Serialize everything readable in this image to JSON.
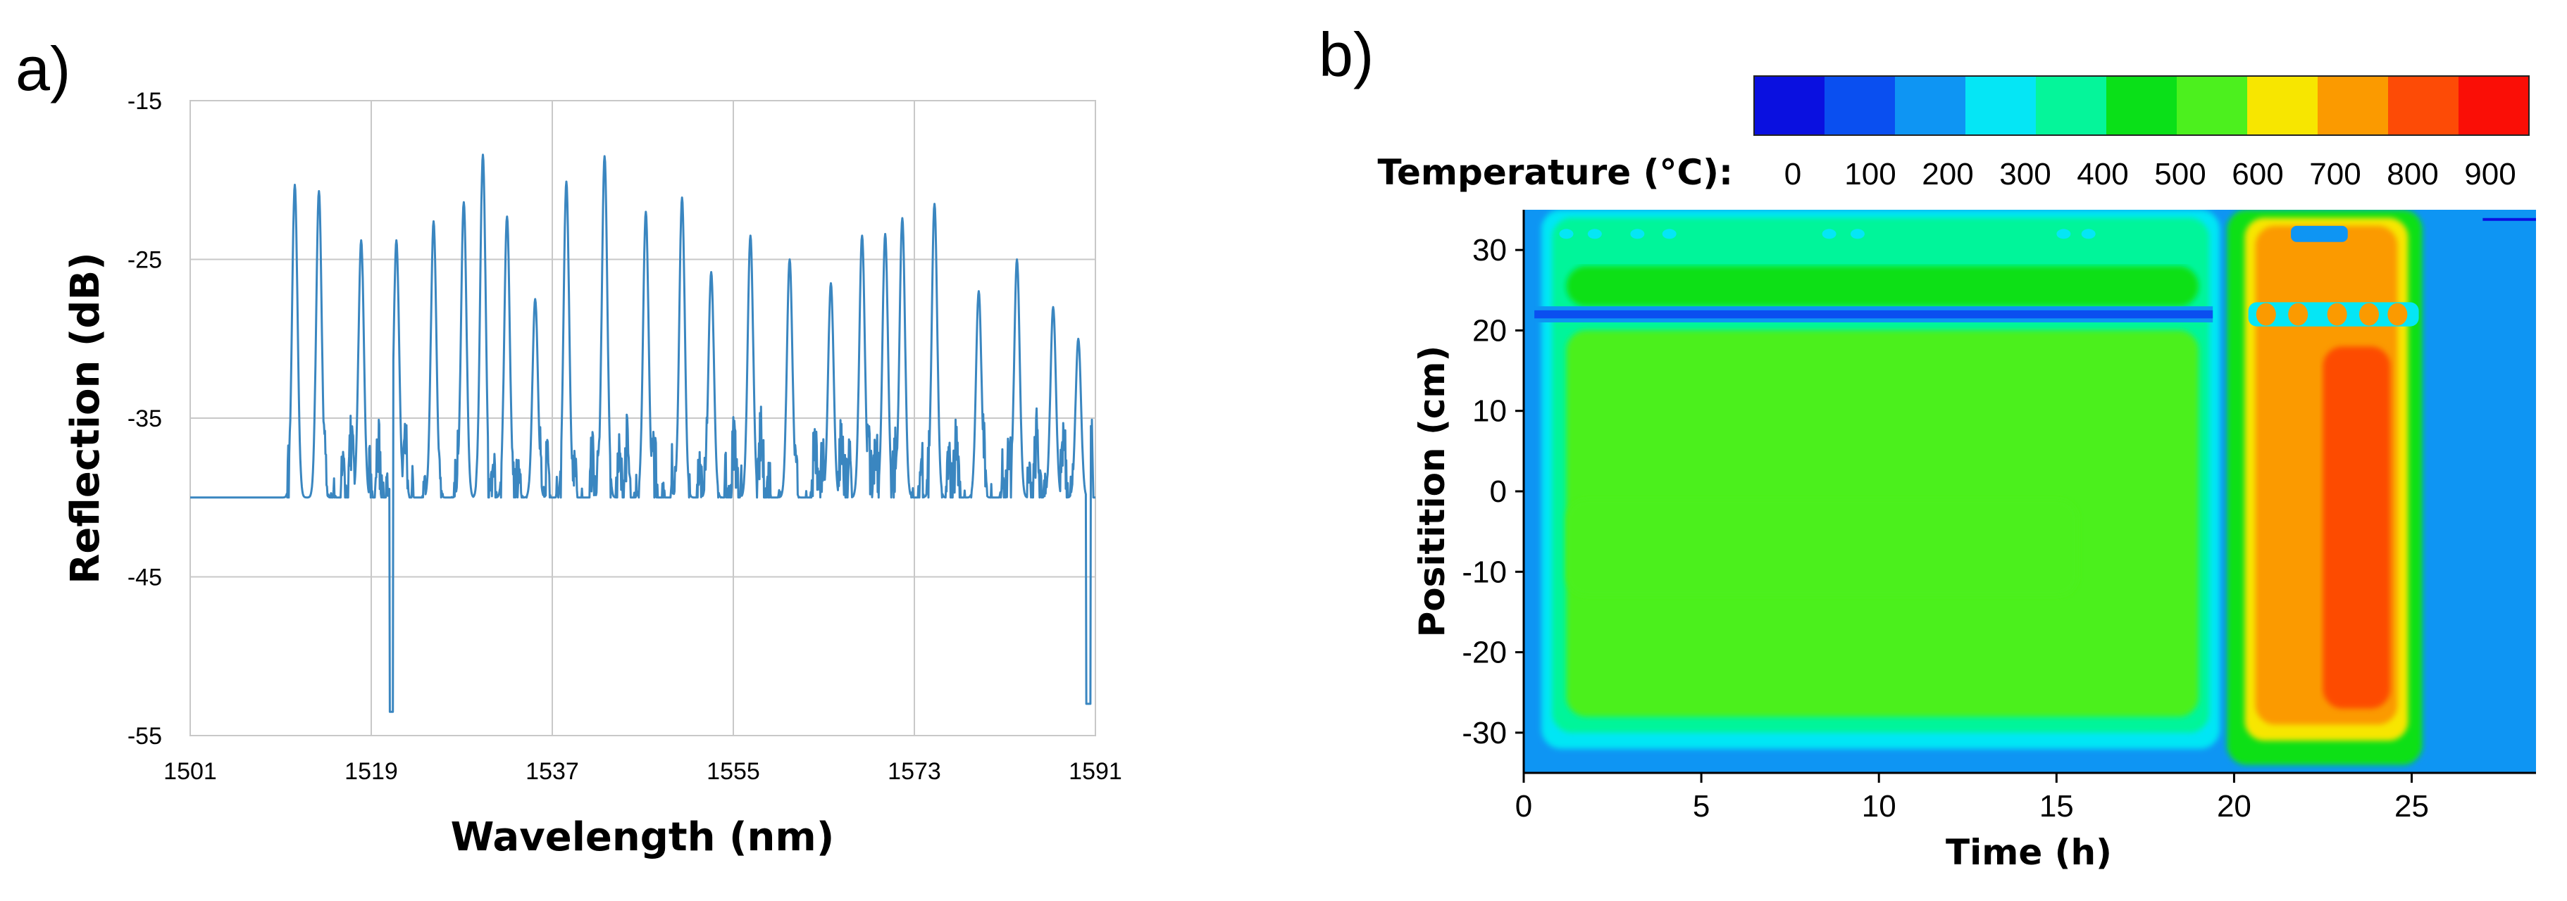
{
  "chart_data": [
    {
      "panel": "a)",
      "type": "line",
      "xlabel": "Wavelength (nm)",
      "ylabel": "Reflection (dB)",
      "xlim": [
        1501,
        1591
      ],
      "ylim": [
        -55,
        -15
      ],
      "xticks": [
        "1501",
        "1519",
        "1537",
        "1555",
        "1573",
        "1591"
      ],
      "yticks": [
        "-15",
        "-25",
        "-35",
        "-45",
        "-55"
      ],
      "grid": true,
      "line_color": "#3a86c0",
      "noise_floor_db": -40,
      "peaks": [
        {
          "x": 1511.4,
          "y": -20.3
        },
        {
          "x": 1513.8,
          "y": -20.7
        },
        {
          "x": 1518.0,
          "y": -23.8
        },
        {
          "x": 1521.5,
          "y": -23.8
        },
        {
          "x": 1525.2,
          "y": -22.6
        },
        {
          "x": 1528.2,
          "y": -21.4
        },
        {
          "x": 1530.1,
          "y": -18.4
        },
        {
          "x": 1532.5,
          "y": -22.3
        },
        {
          "x": 1535.3,
          "y": -27.5
        },
        {
          "x": 1538.4,
          "y": -20.1
        },
        {
          "x": 1542.2,
          "y": -18.5
        },
        {
          "x": 1546.3,
          "y": -22.0
        },
        {
          "x": 1549.9,
          "y": -21.1
        },
        {
          "x": 1552.8,
          "y": -25.8
        },
        {
          "x": 1556.7,
          "y": -23.5
        },
        {
          "x": 1560.6,
          "y": -25.0
        },
        {
          "x": 1564.7,
          "y": -26.5
        },
        {
          "x": 1567.8,
          "y": -23.5
        },
        {
          "x": 1570.1,
          "y": -23.4
        },
        {
          "x": 1571.8,
          "y": -22.4
        },
        {
          "x": 1575.0,
          "y": -21.5
        },
        {
          "x": 1579.4,
          "y": -27.0
        },
        {
          "x": 1583.2,
          "y": -25.0
        },
        {
          "x": 1586.8,
          "y": -28.0
        },
        {
          "x": 1589.3,
          "y": -30.0
        }
      ]
    },
    {
      "panel": "b)",
      "type": "heatmap",
      "xlabel": "Time (h)",
      "ylabel": "Positition (cm)",
      "xlim": [
        0,
        28.5
      ],
      "ylim": [
        -35,
        35
      ],
      "xticks": [
        "0",
        "5",
        "10",
        "15",
        "20",
        "25"
      ],
      "yticks": [
        "30",
        "20",
        "10",
        "0",
        "-10",
        "-20",
        "-30"
      ],
      "colorbar": {
        "title": "Temperature (°C):",
        "labels": [
          "0",
          "100",
          "200",
          "300",
          "400",
          "500",
          "600",
          "700",
          "800",
          "900"
        ],
        "colors": [
          "#0a10e0",
          "#0a4ff0",
          "#0e95f3",
          "#05e6f5",
          "#05f59a",
          "#0ae018",
          "#4cf01e",
          "#f7e600",
          "#fb9a00",
          "#fd4b06",
          "#fa0e06"
        ]
      },
      "regions": [
        {
          "name": "ambient",
          "t": [
            0,
            28.5
          ],
          "pos": [
            -35,
            35
          ],
          "temp": 100
        },
        {
          "name": "edge-band-1",
          "t": [
            0.5,
            19.6
          ],
          "pos": [
            -32,
            35
          ],
          "temp": 200
        },
        {
          "name": "edge-band-2",
          "t": [
            0.8,
            19.3
          ],
          "pos": [
            -30,
            34
          ],
          "temp": 300
        },
        {
          "name": "hold-500",
          "t": [
            1.2,
            19.0
          ],
          "pos": [
            -28,
            20
          ],
          "temp": 500
        },
        {
          "name": "hold-500-upper",
          "t": [
            1.2,
            19.0
          ],
          "pos": [
            23,
            28
          ],
          "temp": 450
        },
        {
          "name": "hold-550-core",
          "t": [
            1.2,
            15.6
          ],
          "pos": [
            -13,
            -1
          ],
          "temp": 560
        },
        {
          "name": "ramp-edge",
          "t": [
            19.8,
            25.3
          ],
          "pos": [
            -34,
            35
          ],
          "temp": 400
        },
        {
          "name": "ramp-700",
          "t": [
            20.3,
            24.9
          ],
          "pos": [
            -31,
            34
          ],
          "temp": 650
        },
        {
          "name": "ramp-750",
          "t": [
            20.6,
            24.6
          ],
          "pos": [
            -29,
            33
          ],
          "temp": 750
        },
        {
          "name": "peak-850",
          "t": [
            22.5,
            24.4
          ],
          "pos": [
            -27,
            18
          ],
          "temp": 850
        }
      ]
    }
  ]
}
